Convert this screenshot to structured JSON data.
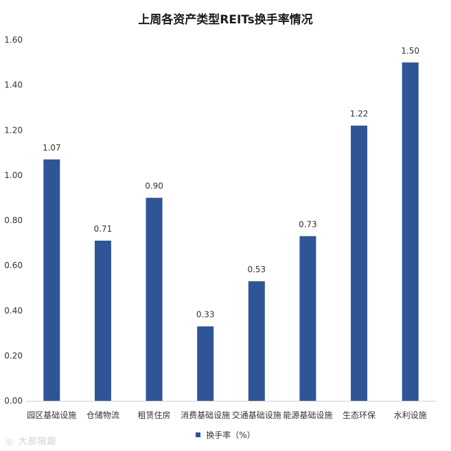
{
  "chart_data": {
    "type": "bar",
    "title": "上周各资产类型REITs换手率情况",
    "categories": [
      "园区基础设施",
      "仓储物流",
      "租赁住房",
      "消费基础设施",
      "交通基础设施",
      "能源基础设施",
      "生态环保",
      "水利设施"
    ],
    "series": [
      {
        "name": "换手率（%）",
        "values": [
          1.07,
          0.71,
          0.9,
          0.33,
          0.53,
          0.73,
          1.22,
          1.5
        ],
        "color": "#2f5597"
      }
    ],
    "data_labels": [
      "1.07",
      "0.71",
      "0.90",
      "0.33",
      "0.53",
      "0.73",
      "1.22",
      "1.50"
    ],
    "ylim": [
      0,
      1.6
    ],
    "yticks": [
      "0.00",
      "0.20",
      "0.40",
      "0.60",
      "0.80",
      "1.00",
      "1.20",
      "1.40",
      "1.60"
    ],
    "grid": false,
    "legend_position": "bottom",
    "xlabel": "",
    "ylabel": ""
  },
  "watermark": {
    "icon": "weibo-icon",
    "text": "大部陪跟"
  }
}
